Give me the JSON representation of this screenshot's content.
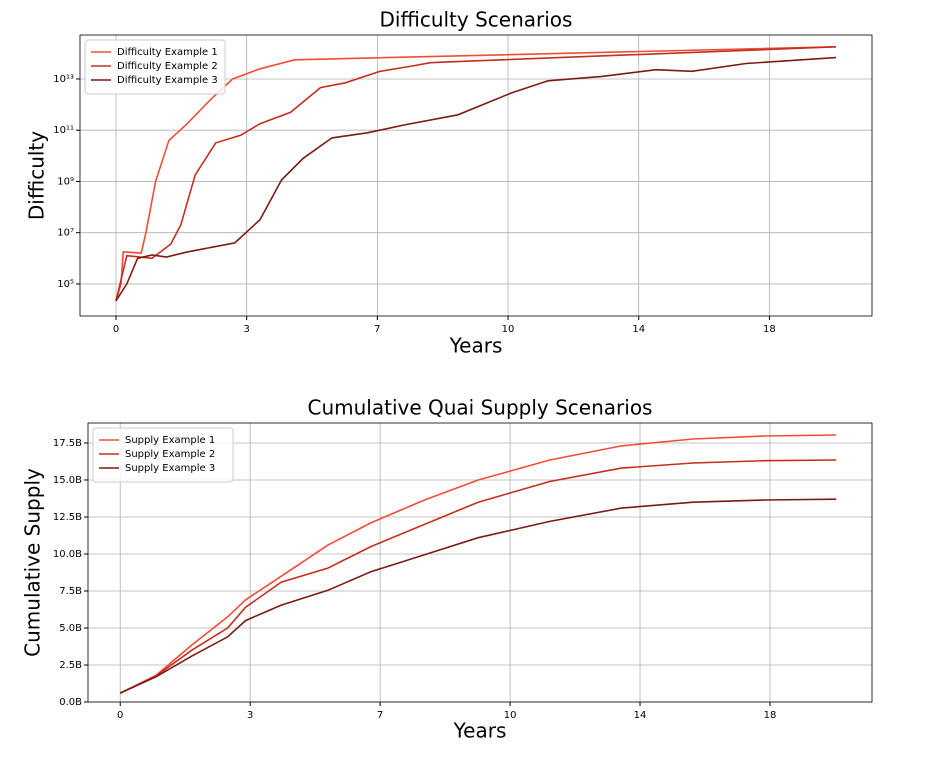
{
  "chart_data": [
    {
      "type": "line",
      "title": "Difficulty Scenarios",
      "x_label": "Years",
      "y_label": "Difficulty",
      "yscale": "log",
      "grid": true,
      "legend": "upper left",
      "xlim": [
        -1,
        21
      ],
      "ylim": [
        5600,
        520000000000000
      ],
      "xticks": [
        0,
        {
          "value": 3.63,
          "label": "3"
        },
        {
          "value": 7.26,
          "label": "7"
        },
        {
          "value": 10.89,
          "label": "10"
        },
        {
          "value": 14.52,
          "label": "14"
        },
        {
          "value": 18.15,
          "label": "18"
        }
      ],
      "yticks": [
        {
          "value": 100000,
          "label": "10⁵"
        },
        {
          "value": 10000000,
          "label": "10⁷"
        },
        {
          "value": 1000000000,
          "label": "10⁹"
        },
        {
          "value": 100000000000,
          "label": "10¹¹"
        },
        {
          "value": 10000000000000,
          "label": "10¹³"
        }
      ],
      "series": [
        {
          "name": "Difficulty Example 1",
          "color": "#f04e38",
          "x": [
            0,
            0.14,
            0.2,
            0.7,
            0.83,
            1.1,
            1.47,
            1.94,
            2.63,
            3.24,
            4.0,
            4.96,
            20
          ],
          "values": [
            22000,
            100000,
            1800000,
            1600000,
            10000000,
            1000000000,
            40000000000,
            160000000000,
            1600000000000,
            10000000000000,
            25000000000000,
            56000000000000,
            180000000000000
          ]
        },
        {
          "name": "Difficulty Example 2",
          "color": "#c62e1f",
          "x": [
            0,
            0.3,
            1.0,
            1.52,
            1.8,
            2.2,
            2.77,
            3.46,
            4.0,
            4.85,
            5.68,
            6.37,
            7.34,
            8.23,
            8.73,
            9.83,
            20
          ],
          "values": [
            22000,
            1260000,
            1000000,
            3600000,
            20000000,
            1800000000,
            32000000000,
            63000000000,
            180000000000,
            500000000000,
            4600000000000,
            7100000000000,
            20000000000000,
            32000000000000,
            43000000000000,
            50000000000000,
            180000000000000
          ]
        },
        {
          "name": "Difficulty Example 3",
          "color": "#7a1c12",
          "x": [
            0,
            0.3,
            0.6,
            1.0,
            1.4,
            2.0,
            3.3,
            4.0,
            4.6,
            5.2,
            6.0,
            7.0,
            8.0,
            9.5,
            11.0,
            12.0,
            13.5,
            15.0,
            16.0,
            17.5,
            20
          ],
          "values": [
            22000,
            100000,
            1000000,
            1350000,
            1120000,
            1800000,
            4000000,
            32000000,
            1150000000,
            8000000000,
            50000000000,
            80000000000,
            160000000000,
            400000000000,
            2900000000000,
            8500000000000,
            12600000000000,
            23000000000000,
            20000000000000,
            40000000000000,
            68000000000000
          ]
        }
      ]
    },
    {
      "type": "line",
      "title": "Cumulative Quai Supply Scenarios",
      "x_label": "Years",
      "y_label": "Cumulative Supply",
      "yscale": "linear",
      "grid": true,
      "legend": "upper left",
      "xlim": [
        -0.9,
        21
      ],
      "ylim": [
        0,
        18.85
      ],
      "xticks": [
        0,
        {
          "value": 3.63,
          "label": "3"
        },
        {
          "value": 7.26,
          "label": "7"
        },
        {
          "value": 10.89,
          "label": "10"
        },
        {
          "value": 14.52,
          "label": "14"
        },
        {
          "value": 18.15,
          "label": "18"
        }
      ],
      "yticks": [
        {
          "value": 0,
          "label": "0.0B"
        },
        {
          "value": 2.5,
          "label": "2.5B"
        },
        {
          "value": 5,
          "label": "5.0B"
        },
        {
          "value": 7.5,
          "label": "7.5B"
        },
        {
          "value": 10,
          "label": "10.0B"
        },
        {
          "value": 12.5,
          "label": "12.5B"
        },
        {
          "value": 15,
          "label": "15.0B"
        },
        {
          "value": 17.5,
          "label": "17.5B"
        }
      ],
      "series": [
        {
          "name": "Supply Example 1",
          "color": "#f04e38",
          "x": [
            0,
            1,
            2,
            3,
            3.5,
            4.5,
            5.8,
            7,
            8.5,
            10,
            12,
            14,
            16,
            18,
            20
          ],
          "values": [
            0.6,
            1.8,
            3.85,
            5.75,
            6.9,
            8.5,
            10.6,
            12.1,
            13.65,
            15.0,
            16.35,
            17.3,
            17.77,
            17.97,
            18.04
          ]
        },
        {
          "name": "Supply Example 2",
          "color": "#c62e1f",
          "x": [
            0,
            1,
            2,
            3,
            3.5,
            4.5,
            5.8,
            7,
            8.5,
            10,
            12,
            14,
            16,
            18,
            20
          ],
          "values": [
            0.6,
            1.75,
            3.5,
            5.0,
            6.4,
            8.1,
            9.05,
            10.5,
            12.0,
            13.5,
            14.9,
            15.8,
            16.15,
            16.3,
            16.35
          ]
        },
        {
          "name": "Supply Example 3",
          "color": "#7a1c12",
          "x": [
            0,
            1,
            2,
            3,
            3.5,
            4.5,
            5.8,
            7,
            8.5,
            10,
            12,
            14,
            16,
            18,
            20
          ],
          "values": [
            0.6,
            1.7,
            3.1,
            4.4,
            5.5,
            6.55,
            7.55,
            8.8,
            9.95,
            11.1,
            12.2,
            13.1,
            13.5,
            13.65,
            13.7
          ]
        }
      ]
    }
  ]
}
